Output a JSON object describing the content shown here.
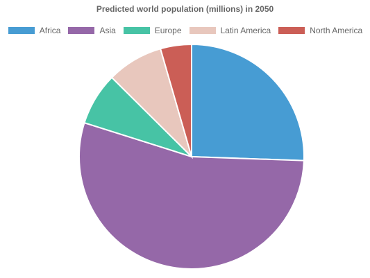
{
  "chart_data": {
    "type": "pie",
    "title": "Predicted world population (millions) in 2050",
    "legend_position": "top",
    "categories": [
      "Africa",
      "Asia",
      "Europe",
      "Latin America",
      "North America"
    ],
    "values": [
      2478,
      5267,
      734,
      784,
      433
    ],
    "colors": [
      "#479cd3",
      "#9568a8",
      "#47c3a5",
      "#e8c7bd",
      "#cb5e56"
    ]
  }
}
